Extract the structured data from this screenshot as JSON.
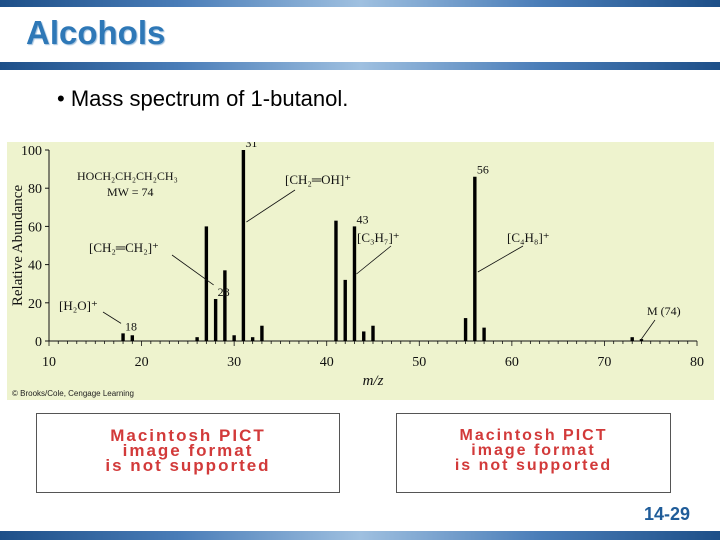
{
  "slide": {
    "title": "Alcohols",
    "bullet": "• Mass spectrum of 1-butanol.",
    "credit": "© Brooks/Cole, Cengage Learning",
    "placeholder_line1": "Macintosh PICT",
    "placeholder_line2": "image format",
    "placeholder_line3": "is not supported",
    "slide_number": "14-29",
    "colors": {
      "title": "#2e78b7",
      "background_plot": "#eef3ce",
      "bars": "#000000",
      "placeholder_text": "#d23a3a",
      "band": "#1d4f88"
    }
  },
  "chart_data": {
    "type": "bar",
    "xlabel": "m/z",
    "ylabel": "Relative Abundance",
    "xlim": [
      10,
      80
    ],
    "ylim": [
      0,
      100
    ],
    "xticks": [
      10,
      20,
      30,
      40,
      50,
      60,
      70,
      80
    ],
    "yticks": [
      0,
      20,
      40,
      60,
      80,
      100
    ],
    "grid": false,
    "peaks": [
      {
        "x": 18,
        "y": 4
      },
      {
        "x": 19,
        "y": 3
      },
      {
        "x": 26,
        "y": 2
      },
      {
        "x": 27,
        "y": 60
      },
      {
        "x": 28,
        "y": 22
      },
      {
        "x": 29,
        "y": 37
      },
      {
        "x": 30,
        "y": 3
      },
      {
        "x": 31,
        "y": 100
      },
      {
        "x": 32,
        "y": 2
      },
      {
        "x": 33,
        "y": 8
      },
      {
        "x": 41,
        "y": 63
      },
      {
        "x": 42,
        "y": 32
      },
      {
        "x": 43,
        "y": 60
      },
      {
        "x": 44,
        "y": 5
      },
      {
        "x": 45,
        "y": 8
      },
      {
        "x": 55,
        "y": 12
      },
      {
        "x": 56,
        "y": 86
      },
      {
        "x": 57,
        "y": 7
      },
      {
        "x": 73,
        "y": 2
      },
      {
        "x": 74,
        "y": 1
      }
    ],
    "peak_labels": [
      {
        "x": 18,
        "text": "18"
      },
      {
        "x": 28,
        "text": "28"
      },
      {
        "x": 31,
        "text": "31"
      },
      {
        "x": 43,
        "text": "43"
      },
      {
        "x": 56,
        "text": "56"
      }
    ],
    "annotations": {
      "compound": "HOCH₂CH₂CH₂CH₃",
      "mw": "MW = 74",
      "ion_31": "[CH₂═OH]⁺",
      "ion_28": "[CH₂═CH₂]⁺",
      "ion_18": "[H₂O]⁺",
      "ion_43": "[C₃H₇]⁺",
      "ion_56": "[C₄H₈]⁺",
      "molecular_ion": "M (74)"
    }
  }
}
